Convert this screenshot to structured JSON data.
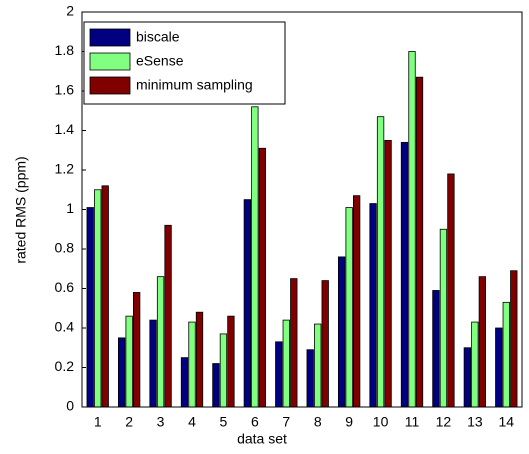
{
  "chart_data": {
    "type": "bar",
    "xlabel": "data set",
    "ylabel": "rated RMS (ppm)",
    "categories": [
      "1",
      "2",
      "3",
      "4",
      "5",
      "6",
      "7",
      "8",
      "9",
      "10",
      "11",
      "12",
      "13",
      "14"
    ],
    "series": [
      {
        "name": "biscale",
        "color": "#000080",
        "values": [
          1.01,
          0.35,
          0.44,
          0.25,
          0.22,
          1.05,
          0.33,
          0.29,
          0.76,
          1.03,
          1.34,
          0.59,
          0.3,
          0.4
        ]
      },
      {
        "name": "eSense",
        "color": "#80ff80",
        "values": [
          1.1,
          0.46,
          0.66,
          0.43,
          0.37,
          1.52,
          0.44,
          0.42,
          1.01,
          1.47,
          1.8,
          0.9,
          0.43,
          0.53
        ]
      },
      {
        "name": "minimum sampling",
        "color": "#800000",
        "values": [
          1.12,
          0.58,
          0.92,
          0.48,
          0.46,
          1.31,
          0.65,
          0.64,
          1.07,
          1.35,
          1.67,
          1.18,
          0.66,
          0.69
        ]
      }
    ],
    "ylim": [
      0,
      2
    ],
    "yticks": [
      0,
      0.2,
      0.4,
      0.6,
      0.8,
      1,
      1.2,
      1.4,
      1.6,
      1.8,
      2
    ],
    "legend": "upper left"
  }
}
